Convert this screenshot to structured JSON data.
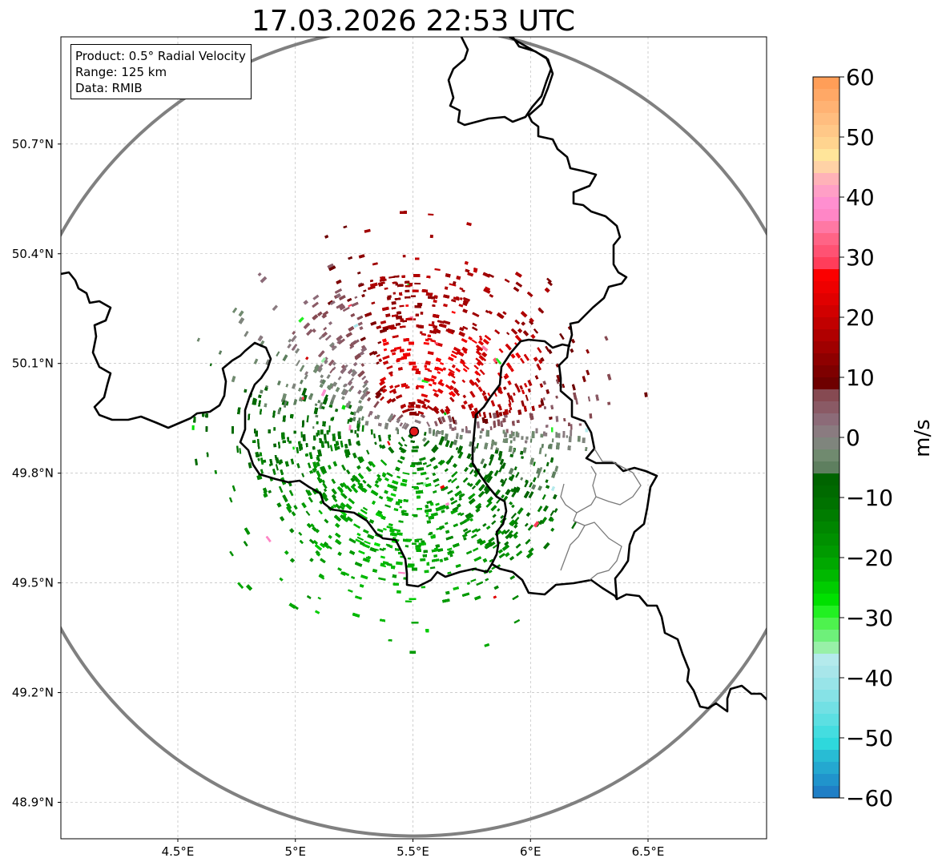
{
  "title": "17.03.2026 22:53 UTC",
  "info_box": {
    "product": "Product: 0.5° Radial Velocity",
    "range": "Range: 125 km",
    "data": "Data: RMIB"
  },
  "map": {
    "lon_range": [
      4.0,
      7.0
    ],
    "lat_range": [
      48.8,
      50.98
    ],
    "lon_ticks": [
      {
        "value": 4.5,
        "label": "4.5°E"
      },
      {
        "value": 5.0,
        "label": "5°E"
      },
      {
        "value": 5.5,
        "label": "5.5°E"
      },
      {
        "value": 6.0,
        "label": "6°E"
      },
      {
        "value": 6.5,
        "label": "6.5°E"
      }
    ],
    "lat_ticks": [
      {
        "value": 50.7,
        "label": "50.7°N"
      },
      {
        "value": 50.4,
        "label": "50.4°N"
      },
      {
        "value": 50.1,
        "label": "50.1°N"
      },
      {
        "value": 49.8,
        "label": "49.8°N"
      },
      {
        "value": 49.5,
        "label": "49.5°N"
      },
      {
        "value": 49.2,
        "label": "49.2°N"
      },
      {
        "value": 48.9,
        "label": "48.9°N"
      }
    ],
    "radar_site": {
      "lon": 5.505,
      "lat": 49.914
    },
    "range_km": 125,
    "grid": true
  },
  "colorbar": {
    "label": "m/s",
    "min": -60,
    "max": 60,
    "ticks": [
      {
        "value": 60,
        "label": "60"
      },
      {
        "value": 50,
        "label": "50"
      },
      {
        "value": 40,
        "label": "40"
      },
      {
        "value": 30,
        "label": "30"
      },
      {
        "value": 20,
        "label": "20"
      },
      {
        "value": 10,
        "label": "10"
      },
      {
        "value": 0,
        "label": "0"
      },
      {
        "value": -10,
        "label": "−10"
      },
      {
        "value": -20,
        "label": "−20"
      },
      {
        "value": -30,
        "label": "−30"
      },
      {
        "value": -40,
        "label": "−40"
      },
      {
        "value": -50,
        "label": "−50"
      },
      {
        "value": -60,
        "label": "−60"
      }
    ],
    "bands": [
      {
        "from": 58,
        "to": 60,
        "color": "#ff9e58"
      },
      {
        "from": 56,
        "to": 58,
        "color": "#ffa866"
      },
      {
        "from": 54,
        "to": 56,
        "color": "#ffb273"
      },
      {
        "from": 52,
        "to": 54,
        "color": "#ffbd7f"
      },
      {
        "from": 50,
        "to": 52,
        "color": "#ffc888"
      },
      {
        "from": 48,
        "to": 50,
        "color": "#ffd48f"
      },
      {
        "from": 46,
        "to": 48,
        "color": "#ffe59a"
      },
      {
        "from": 44,
        "to": 46,
        "color": "#ffd2a6"
      },
      {
        "from": 42,
        "to": 44,
        "color": "#ffb2b8"
      },
      {
        "from": 40,
        "to": 42,
        "color": "#ff9fc6"
      },
      {
        "from": 38,
        "to": 40,
        "color": "#ff8fd0"
      },
      {
        "from": 36,
        "to": 38,
        "color": "#ff86c6"
      },
      {
        "from": 34,
        "to": 36,
        "color": "#ff78a4"
      },
      {
        "from": 32,
        "to": 34,
        "color": "#ff6486"
      },
      {
        "from": 30,
        "to": 32,
        "color": "#ff5273"
      },
      {
        "from": 28,
        "to": 30,
        "color": "#ff3d5a"
      },
      {
        "from": 26,
        "to": 28,
        "color": "#fb0000"
      },
      {
        "from": 24,
        "to": 26,
        "color": "#ee0000"
      },
      {
        "from": 22,
        "to": 24,
        "color": "#e00000"
      },
      {
        "from": 20,
        "to": 22,
        "color": "#d10000"
      },
      {
        "from": 18,
        "to": 20,
        "color": "#c10000"
      },
      {
        "from": 16,
        "to": 18,
        "color": "#b00000"
      },
      {
        "from": 14,
        "to": 16,
        "color": "#a00000"
      },
      {
        "from": 12,
        "to": 14,
        "color": "#8e0000"
      },
      {
        "from": 10,
        "to": 12,
        "color": "#7e0000"
      },
      {
        "from": 8,
        "to": 10,
        "color": "#6e0000"
      },
      {
        "from": 6,
        "to": 8,
        "color": "#864a52"
      },
      {
        "from": 4,
        "to": 6,
        "color": "#8a5a65"
      },
      {
        "from": 2,
        "to": 4,
        "color": "#8c6b78"
      },
      {
        "from": 0,
        "to": 2,
        "color": "#8a7b80"
      },
      {
        "from": -2,
        "to": 0,
        "color": "#7f857d"
      },
      {
        "from": -4,
        "to": -2,
        "color": "#708a6f"
      },
      {
        "from": -6,
        "to": -4,
        "color": "#5e7f5f"
      },
      {
        "from": -8,
        "to": -6,
        "color": "#006400"
      },
      {
        "from": -10,
        "to": -8,
        "color": "#006a00"
      },
      {
        "from": -12,
        "to": -10,
        "color": "#007200"
      },
      {
        "from": -14,
        "to": -12,
        "color": "#007c00"
      },
      {
        "from": -16,
        "to": -14,
        "color": "#008600"
      },
      {
        "from": -18,
        "to": -16,
        "color": "#009000"
      },
      {
        "from": -20,
        "to": -18,
        "color": "#009a00"
      },
      {
        "from": -22,
        "to": -20,
        "color": "#00a800"
      },
      {
        "from": -24,
        "to": -22,
        "color": "#00b800"
      },
      {
        "from": -26,
        "to": -24,
        "color": "#00cc00"
      },
      {
        "from": -28,
        "to": -26,
        "color": "#00e000"
      },
      {
        "from": -30,
        "to": -28,
        "color": "#22f022"
      },
      {
        "from": -32,
        "to": -30,
        "color": "#4ef24e"
      },
      {
        "from": -34,
        "to": -32,
        "color": "#6ef07a"
      },
      {
        "from": -36,
        "to": -34,
        "color": "#98f0a8"
      },
      {
        "from": -38,
        "to": -36,
        "color": "#b4eaec"
      },
      {
        "from": -40,
        "to": -38,
        "color": "#a8e6ea"
      },
      {
        "from": -42,
        "to": -40,
        "color": "#98e4e8"
      },
      {
        "from": -44,
        "to": -42,
        "color": "#86e2e6"
      },
      {
        "from": -46,
        "to": -44,
        "color": "#72e0e4"
      },
      {
        "from": -48,
        "to": -46,
        "color": "#5cdfe2"
      },
      {
        "from": -50,
        "to": -48,
        "color": "#44dde0"
      },
      {
        "from": -52,
        "to": -50,
        "color": "#2ed8dc"
      },
      {
        "from": -54,
        "to": -52,
        "color": "#28bcd4"
      },
      {
        "from": -56,
        "to": -54,
        "color": "#24a8d0"
      },
      {
        "from": -58,
        "to": -56,
        "color": "#2094cc"
      },
      {
        "from": -60,
        "to": -58,
        "color": "#1f7fc6"
      }
    ]
  },
  "colors": {
    "border": "#000000",
    "subregion_border": "#7a7a7a",
    "range_ring": "#808080",
    "grid": "#b0b0b0",
    "radar_marker": "#e41a1c"
  }
}
